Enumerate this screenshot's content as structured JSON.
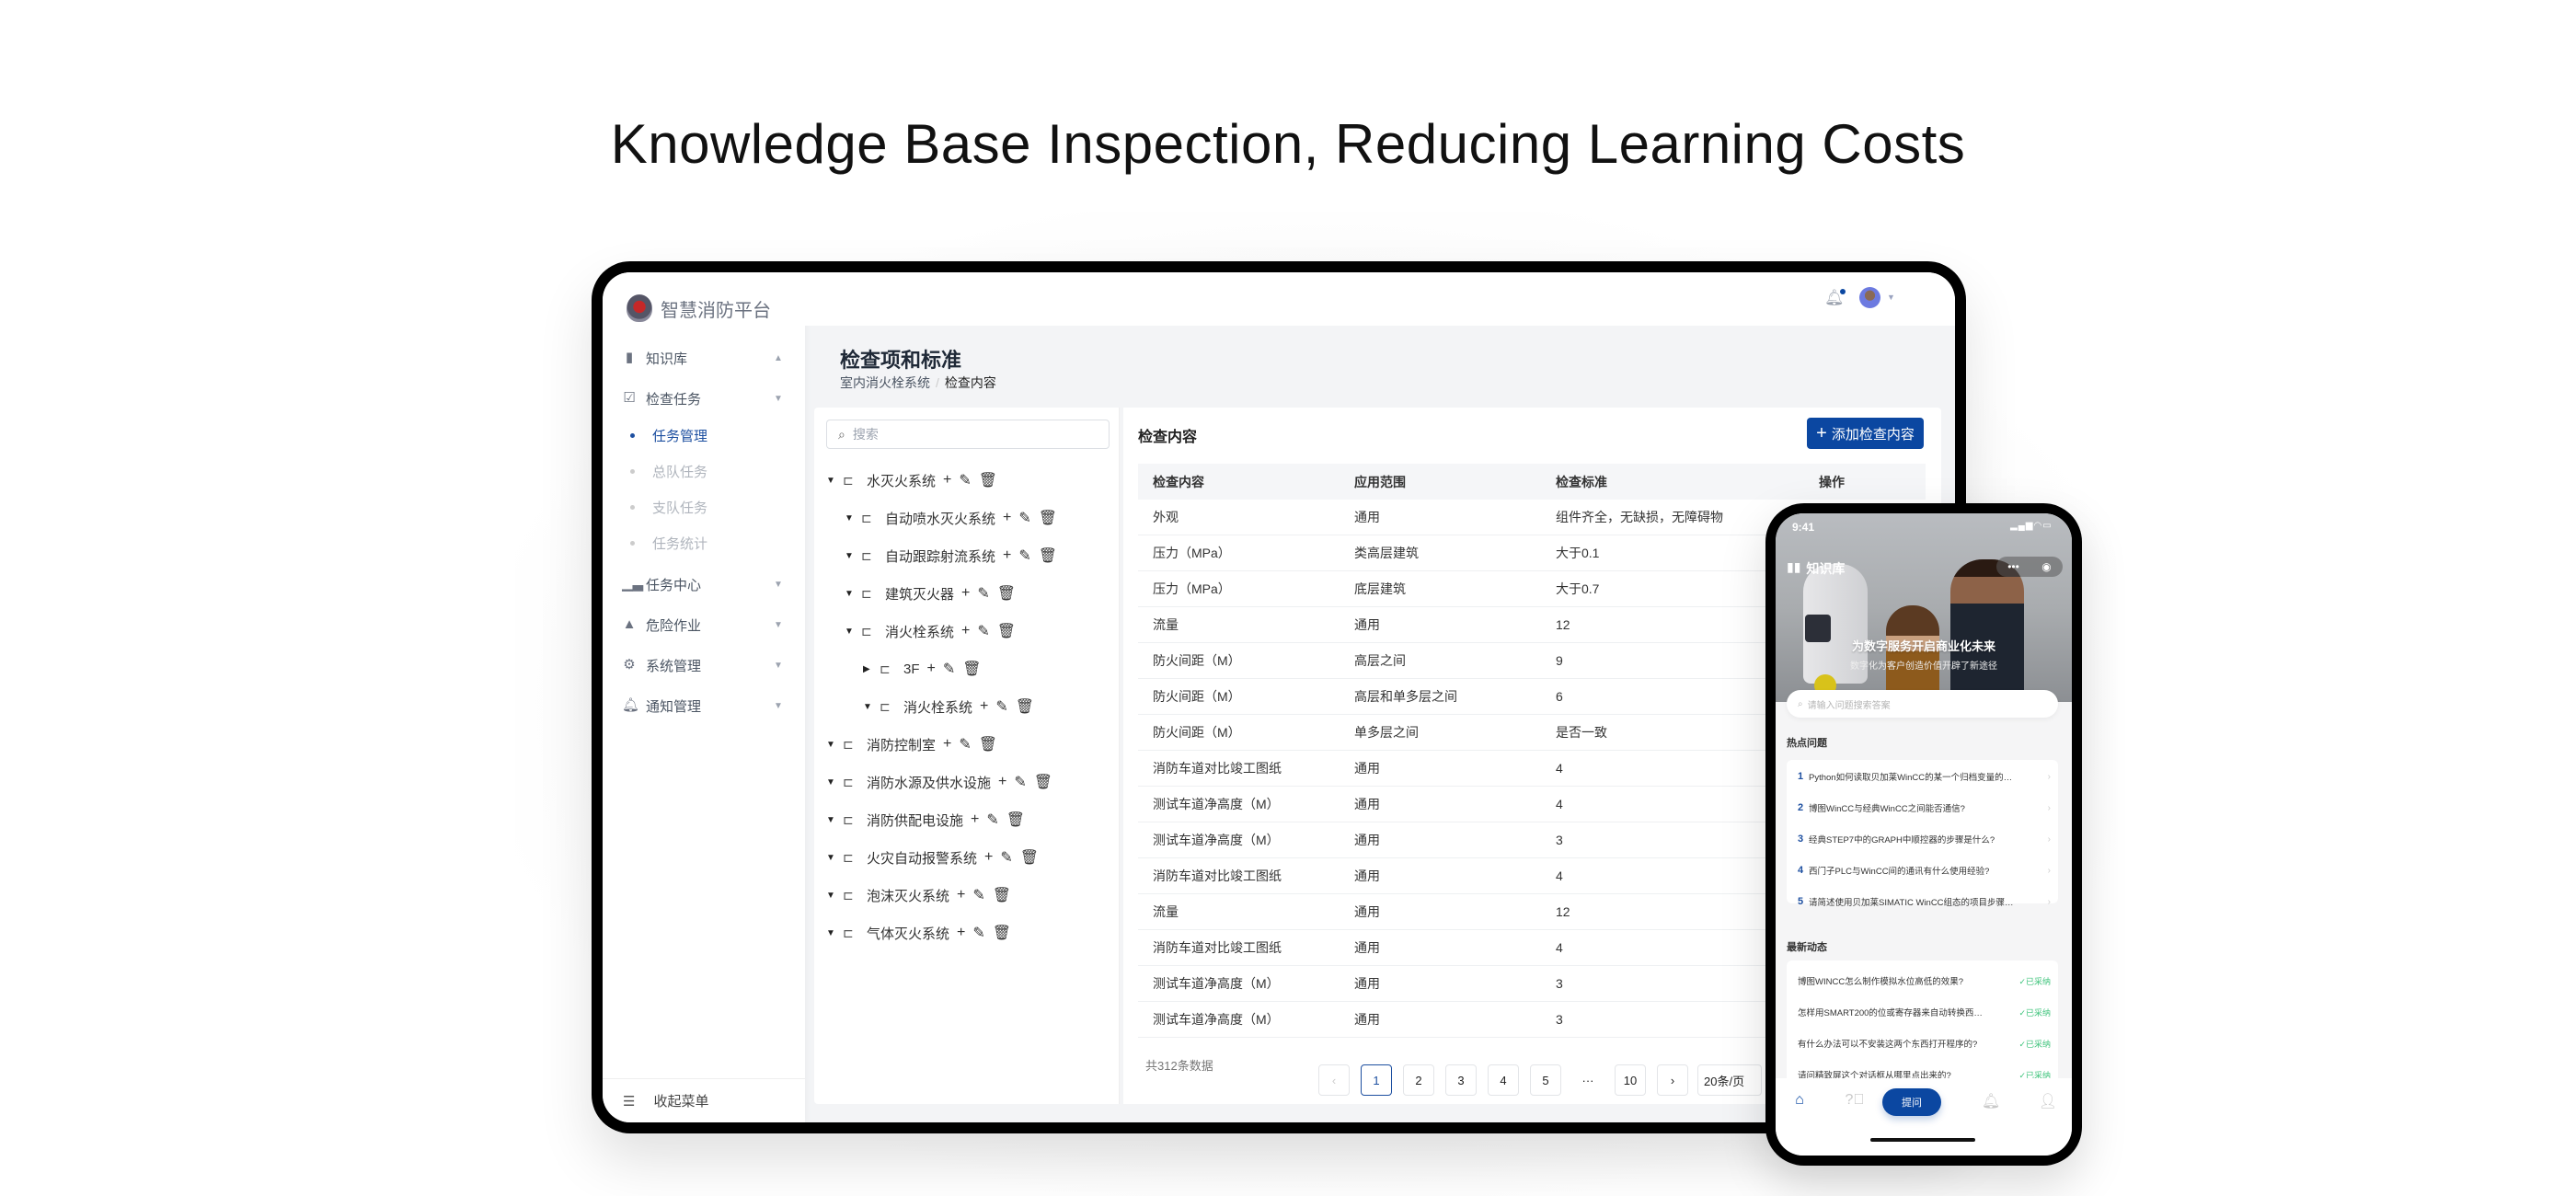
{
  "hero_title": "Knowledge Base Inspection, Reducing Learning Costs",
  "colors": {
    "accent": "#0b47a1",
    "success": "#3cc37a",
    "frame": "#000000",
    "content_bg": "#f3f4f6"
  },
  "web": {
    "brand": "智慧消防平台",
    "sidebar": {
      "menu": [
        {
          "label": "知识库",
          "icon": "bar-chart-icon",
          "caret": "▲"
        },
        {
          "label": "检查任务",
          "icon": "clipboard-check-icon",
          "caret": "▼",
          "children": [
            {
              "label": "任务管理",
              "active": true
            },
            {
              "label": "总队任务"
            },
            {
              "label": "支队任务"
            },
            {
              "label": "任务统计"
            }
          ]
        },
        {
          "label": "任务中心",
          "icon": "stats-icon",
          "caret": "▼"
        },
        {
          "label": "危险作业",
          "icon": "warning-icon",
          "caret": "▼"
        },
        {
          "label": "系统管理",
          "icon": "gear-icon",
          "caret": "▼"
        },
        {
          "label": "通知管理",
          "icon": "bell-icon",
          "caret": "▼"
        }
      ],
      "collapse_label": "收起菜单"
    },
    "header": {
      "notification_badge": true,
      "avatar": "user-avatar"
    },
    "page_title": "检查项和标准",
    "breadcrumb": [
      "室内消火栓系统",
      "检查内容"
    ],
    "tree": {
      "search_placeholder": "搜索",
      "nodes": [
        {
          "label": "水灭火系统",
          "level": 0,
          "expanded": true
        },
        {
          "label": "自动喷水灭火系统",
          "level": 1,
          "expanded": true
        },
        {
          "label": "自动跟踪射流系统",
          "level": 1,
          "expanded": true
        },
        {
          "label": "建筑灭火器",
          "level": 1,
          "expanded": true
        },
        {
          "label": "消火栓系统",
          "level": 1,
          "expanded": true
        },
        {
          "label": "3F",
          "level": 2,
          "expanded": false
        },
        {
          "label": "消火栓系统",
          "level": 2,
          "expanded": true
        },
        {
          "label": "消防控制室",
          "level": 0,
          "expanded": true
        },
        {
          "label": "消防水源及供水设施",
          "level": 0,
          "expanded": true
        },
        {
          "label": "消防供配电设施",
          "level": 0,
          "expanded": true
        },
        {
          "label": "火灾自动报警系统",
          "level": 0,
          "expanded": true
        },
        {
          "label": "泡沫灭火系统",
          "level": 0,
          "expanded": true
        },
        {
          "label": "气体灭火系统",
          "level": 0,
          "expanded": true
        }
      ]
    },
    "main": {
      "title": "检查内容",
      "add_button": "添加检查内容",
      "columns": [
        "检查内容",
        "应用范围",
        "检查标准",
        "操作"
      ],
      "rows": [
        [
          "外观",
          "通用",
          "组件齐全，无缺损，无障碍物"
        ],
        [
          "压力（MPa）",
          "类高层建筑",
          "大于0.1"
        ],
        [
          "压力（MPa）",
          "底层建筑",
          "大于0.7"
        ],
        [
          "流量",
          "通用",
          "12"
        ],
        [
          "防火间距（M）",
          "高层之间",
          "9"
        ],
        [
          "防火间距（M）",
          "高层和单多层之间",
          "6"
        ],
        [
          "防火间距（M）",
          "单多层之间",
          "是否一致"
        ],
        [
          "消防车道对比竣工图纸",
          "通用",
          "4"
        ],
        [
          "测试车道净高度（M）",
          "通用",
          "4"
        ],
        [
          "测试车道净高度（M）",
          "通用",
          "3"
        ],
        [
          "消防车道对比竣工图纸",
          "通用",
          "4"
        ],
        [
          "流量",
          "通用",
          "12"
        ],
        [
          "消防车道对比竣工图纸",
          "通用",
          "4"
        ],
        [
          "测试车道净高度（M）",
          "通用",
          "3"
        ],
        [
          "测试车道净高度（M）",
          "通用",
          "3"
        ]
      ],
      "pagination": {
        "total_label": "共312条数据",
        "pages": [
          "1",
          "2",
          "3",
          "4",
          "5",
          "···",
          "10"
        ],
        "current": "1",
        "page_size": "20条/页"
      }
    }
  },
  "mobile": {
    "time": "9:41",
    "title": "知识库",
    "banner_title": "为数字服务开启商业化未来",
    "banner_subtitle": "数字化为客户创造价值开辟了新途径",
    "search_placeholder": "请输入问题搜索答案",
    "hot_title": "热点问题",
    "hot": [
      "Python如何读取贝加莱WinCC的某一个归档变量的…",
      "博图WinCC与经典WinCC之间能否通信?",
      "经典STEP7中的GRAPH中顺控器的步骤是什么?",
      "西门子PLC与WinCC间的通讯有什么使用经验?",
      "请简述使用贝加莱SIMATIC WinCC组态的项目步骤…"
    ],
    "latest_title": "最新动态",
    "latest": [
      {
        "text": "博图WINCC怎么制作模拟水位高低的效果?",
        "status": "已采纳"
      },
      {
        "text": "怎样用SMART200的位或寄存器来自动转换西…",
        "status": "已采纳"
      },
      {
        "text": "有什么办法可以不安装这两个东西打开程序的?",
        "status": "已采纳"
      },
      {
        "text": "请问精致屏这个对话框从哪里点出来的?",
        "status": "已采纳"
      }
    ],
    "tabbar": {
      "ask_label": "提问",
      "tabs": [
        "home-icon",
        "question-icon",
        "bell-icon",
        "user-icon"
      ]
    }
  }
}
